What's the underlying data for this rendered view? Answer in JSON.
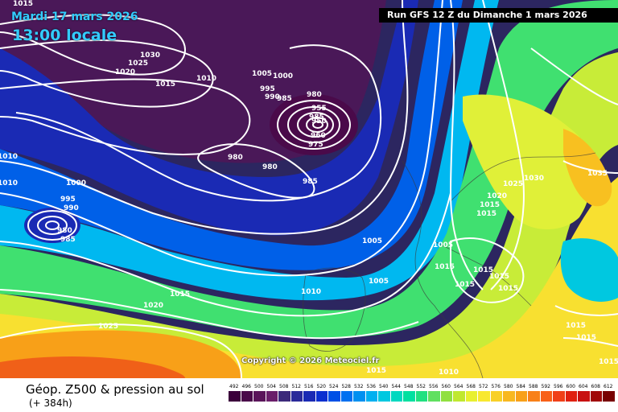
{
  "header": {
    "date": "Mardi 17 mars 2026",
    "local_time": "13:00 locale",
    "run": "Run GFS 12 Z du Dimanche 1 mars 2026"
  },
  "map": {
    "copyright": "Copyright © 2026 Meteociel.fr",
    "pressure_labels": [
      "1015",
      "1030",
      "1025",
      "1020",
      "1015",
      "1010",
      "1005",
      "1000",
      "995",
      "990",
      "985",
      "980",
      "985",
      "955",
      "950",
      "960",
      "975",
      "980",
      "980",
      "985",
      "1010",
      "1000",
      "1010",
      "995",
      "990",
      "980",
      "985",
      "1005",
      "1005",
      "1005",
      "1010",
      "1015",
      "1015",
      "1020",
      "1025",
      "1030",
      "1035",
      "1025",
      "1020",
      "1015",
      "1015",
      "1015",
      "1015",
      "1015",
      "1015",
      "1015",
      "1010",
      "1015",
      "1015",
      "1015"
    ]
  },
  "footer": {
    "title": "Géop. Z500 & pression au sol",
    "subtitle": "(+ 384h)"
  },
  "legend": {
    "ticks": [
      "492",
      "496",
      "500",
      "504",
      "508",
      "512",
      "516",
      "520",
      "524",
      "528",
      "532",
      "536",
      "540",
      "544",
      "548",
      "552",
      "556",
      "560",
      "564",
      "568",
      "572",
      "576",
      "580",
      "584",
      "588",
      "592",
      "596",
      "600",
      "604",
      "608",
      "612"
    ],
    "colors": [
      "#3b003b",
      "#4a0a4a",
      "#5a145a",
      "#6a1e6a",
      "#3c2a7a",
      "#2a2a9a",
      "#1a2ab4",
      "#0a30d0",
      "#0050e6",
      "#0070f0",
      "#0090f0",
      "#00b0f0",
      "#00c8e0",
      "#00d8c0",
      "#00e0a0",
      "#20e080",
      "#60e060",
      "#90e040",
      "#c0e830",
      "#e8f030",
      "#f8e830",
      "#f8d028",
      "#f8b820",
      "#f8a018",
      "#f88018",
      "#f86018",
      "#f04018",
      "#e02010",
      "#c81010",
      "#a00808",
      "#780000"
    ]
  }
}
